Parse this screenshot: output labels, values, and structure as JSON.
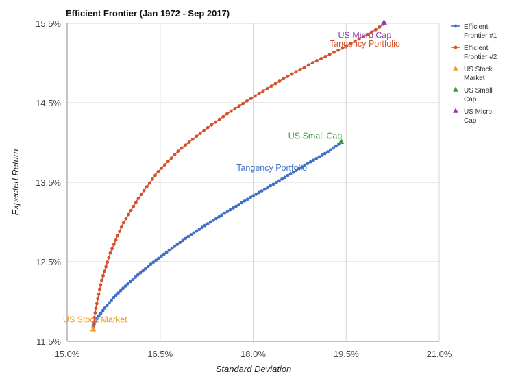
{
  "chart_data": {
    "type": "scatter",
    "title": "Efficient Frontier (Jan 1972 - Sep 2017)",
    "xlabel": "Standard Deviation",
    "ylabel": "Expected Return",
    "xlim": [
      15.0,
      21.0
    ],
    "ylim": [
      11.5,
      15.5
    ],
    "x_ticks": [
      15.0,
      16.5,
      18.0,
      19.5,
      21.0
    ],
    "x_tick_labels": [
      "15.0%",
      "16.5%",
      "18.0%",
      "19.5%",
      "21.0%"
    ],
    "y_ticks": [
      11.5,
      12.5,
      13.5,
      14.5,
      15.5
    ],
    "y_tick_labels": [
      "11.5%",
      "12.5%",
      "13.5%",
      "14.5%",
      "15.5%"
    ],
    "grid": true,
    "legend_position": "right",
    "series": [
      {
        "name": "Efficient Frontier #1",
        "kind": "line-markers",
        "color": "#3f6fc6",
        "x": [
          15.42,
          15.45,
          15.52,
          15.62,
          15.75,
          15.92,
          16.12,
          16.35,
          16.62,
          16.92,
          17.25,
          17.6,
          17.98,
          18.38,
          18.8,
          19.2,
          19.38
        ],
        "y": [
          11.67,
          11.75,
          11.83,
          11.93,
          12.05,
          12.18,
          12.32,
          12.47,
          12.63,
          12.8,
          12.97,
          13.14,
          13.32,
          13.5,
          13.7,
          13.88,
          13.98
        ]
      },
      {
        "name": "Efficient Frontier #2",
        "kind": "line-markers",
        "color": "#d4502c",
        "x": [
          15.42,
          15.46,
          15.55,
          15.7,
          15.9,
          16.15,
          16.45,
          16.8,
          17.2,
          17.65,
          18.1,
          18.55,
          19.0,
          19.42,
          19.75,
          20.0,
          20.1
        ],
        "y": [
          11.68,
          11.9,
          12.25,
          12.62,
          12.98,
          13.3,
          13.62,
          13.9,
          14.15,
          14.4,
          14.62,
          14.83,
          15.02,
          15.18,
          15.32,
          15.43,
          15.49
        ]
      },
      {
        "name": "US Stock Market",
        "kind": "triangle",
        "color": "#f0a030",
        "x": [
          15.42
        ],
        "y": [
          11.65
        ]
      },
      {
        "name": "US Small Cap",
        "kind": "triangle",
        "color": "#3c9a3c",
        "x": [
          19.42
        ],
        "y": [
          14.01
        ]
      },
      {
        "name": "US Micro Cap",
        "kind": "triangle",
        "color": "#8e3aa8",
        "x": [
          20.11
        ],
        "y": [
          15.51
        ]
      }
    ],
    "legend": [
      {
        "lines": [
          "Efficient",
          "Frontier #1"
        ],
        "color": "#3f6fc6",
        "marker": "line"
      },
      {
        "lines": [
          "Efficient",
          "Frontier #2"
        ],
        "color": "#d4502c",
        "marker": "line"
      },
      {
        "lines": [
          "US Stock",
          "Market"
        ],
        "color": "#f0a030",
        "marker": "triangle"
      },
      {
        "lines": [
          "US Small",
          "Cap"
        ],
        "color": "#3c9a3c",
        "marker": "triangle"
      },
      {
        "lines": [
          "US Micro",
          "Cap"
        ],
        "color": "#8e3aa8",
        "marker": "triangle"
      }
    ],
    "annotations": [
      {
        "text": "US Micro Cap",
        "color": "#8e3aa8",
        "x": 19.8,
        "y": 15.35
      },
      {
        "text": "Tangency Portfolio",
        "color": "#d4502c",
        "x": 19.8,
        "y": 15.24
      },
      {
        "text": "US Small Cap",
        "color": "#3c9a3c",
        "x": 19.0,
        "y": 14.08
      },
      {
        "text": "Tangency Portfolio",
        "color": "#3f6fc6",
        "x": 18.3,
        "y": 13.68
      },
      {
        "text": "US Stock Market",
        "color": "#f0a030",
        "x": 15.45,
        "y": 11.77
      }
    ]
  }
}
